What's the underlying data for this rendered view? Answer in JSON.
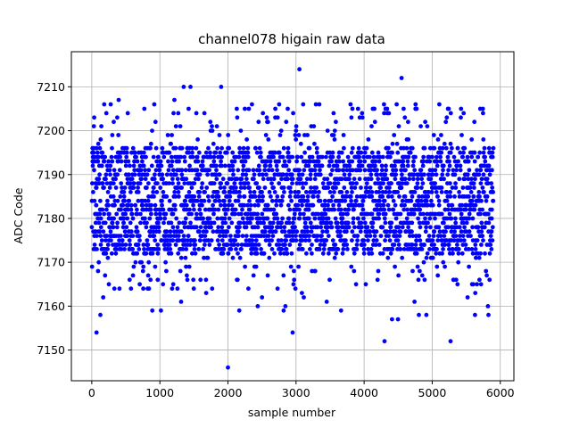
{
  "chart_data": {
    "type": "scatter",
    "title": "channel078 higain raw data",
    "xlabel": "sample number",
    "ylabel": "ADC Code",
    "xlim": [
      -300,
      6200
    ],
    "ylim": [
      7143,
      7218
    ],
    "xticks": [
      0,
      1000,
      2000,
      3000,
      4000,
      5000,
      6000
    ],
    "yticks": [
      7150,
      7160,
      7170,
      7180,
      7190,
      7200,
      7210
    ],
    "grid": true,
    "marker_color": "#0000ff",
    "n_samples": 5900,
    "baseline_mean": 7184,
    "typical_band": [
      7172,
      7196
    ],
    "notable_points": [
      {
        "x": 70,
        "y": 7154
      },
      {
        "x": 1350,
        "y": 7210
      },
      {
        "x": 1450,
        "y": 7210
      },
      {
        "x": 1900,
        "y": 7210
      },
      {
        "x": 2000,
        "y": 7146
      },
      {
        "x": 2950,
        "y": 7154
      },
      {
        "x": 3050,
        "y": 7214
      },
      {
        "x": 4300,
        "y": 7152
      },
      {
        "x": 4550,
        "y": 7212
      },
      {
        "x": 5270,
        "y": 7152
      }
    ]
  }
}
